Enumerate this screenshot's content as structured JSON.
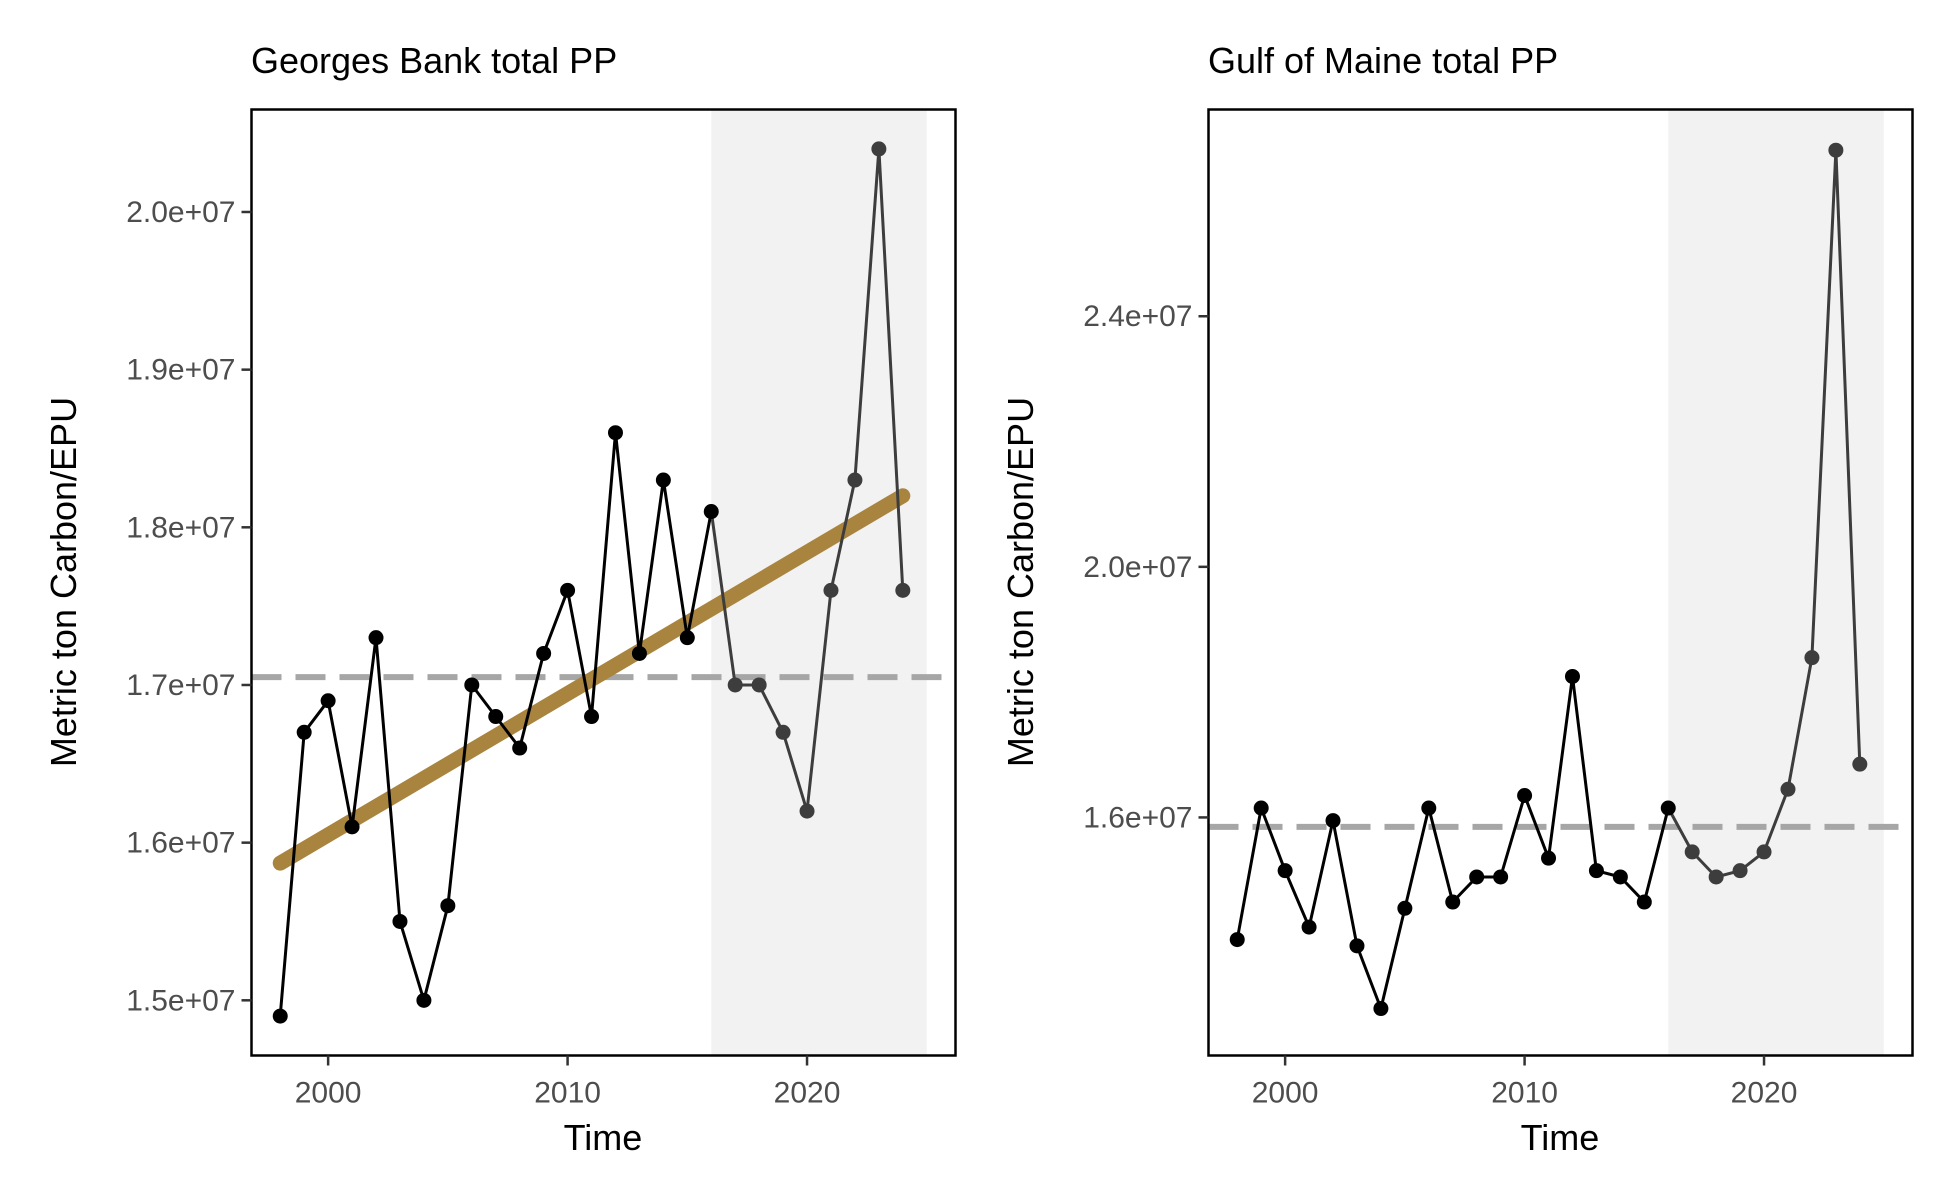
{
  "colors": {
    "recent_shade": "#f2f2f2",
    "baseline": "#a6a6a6",
    "trend": "#a9843f",
    "series_line": "#000000",
    "recent_line": "#3d3d3d"
  },
  "chart_data": [
    {
      "type": "line",
      "title": "Georges Bank total PP",
      "xlabel": "Time",
      "ylabel": "Metric ton Carbon/EPU",
      "xlim": [
        1996.8,
        2026.2
      ],
      "ylim": [
        14650000,
        20650000
      ],
      "x_ticks": [
        2000,
        2010,
        2020
      ],
      "x_tick_labels": [
        "2000",
        "2010",
        "2020"
      ],
      "y_ticks": [
        15000000,
        16000000,
        17000000,
        18000000,
        19000000,
        20000000
      ],
      "y_tick_labels": [
        "1.5e+07",
        "1.6e+07",
        "1.7e+07",
        "1.8e+07",
        "1.9e+07",
        "2.0e+07"
      ],
      "shaded_region": [
        2016,
        2025
      ],
      "baseline_mean": 17050000,
      "trend_line": {
        "x": [
          1998,
          2024
        ],
        "y": [
          15870000,
          18200000
        ]
      },
      "series": [
        {
          "x": [
            1998,
            1999,
            2000,
            2001,
            2002,
            2003,
            2004,
            2005,
            2006,
            2007,
            2008,
            2009,
            2010,
            2011,
            2012,
            2013,
            2014,
            2015,
            2016,
            2017,
            2018,
            2019,
            2020,
            2021,
            2022,
            2023,
            2024
          ],
          "values": [
            14900000,
            16700000,
            16900000,
            16100000,
            17300000,
            15500000,
            15000000,
            15600000,
            17000000,
            16800000,
            16600000,
            17200000,
            17600000,
            16800000,
            18600000,
            17200000,
            18300000,
            17300000,
            18100000,
            17000000,
            17000000,
            16700000,
            16200000,
            17600000,
            18300000,
            20400000,
            17600000
          ]
        }
      ]
    },
    {
      "type": "line",
      "title": "Gulf of Maine total PP",
      "xlabel": "Time",
      "ylabel": "Metric ton Carbon/EPU",
      "xlim": [
        1996.8,
        2026.2
      ],
      "ylim": [
        12200000,
        27300000
      ],
      "x_ticks": [
        2000,
        2010,
        2020
      ],
      "x_tick_labels": [
        "2000",
        "2010",
        "2020"
      ],
      "y_ticks": [
        16000000,
        20000000,
        24000000
      ],
      "y_tick_labels": [
        "1.6e+07",
        "2.0e+07",
        "2.4e+07"
      ],
      "shaded_region": [
        2016,
        2025
      ],
      "baseline_mean": 15850000,
      "series": [
        {
          "x": [
            1998,
            1999,
            2000,
            2001,
            2002,
            2003,
            2004,
            2005,
            2006,
            2007,
            2008,
            2009,
            2010,
            2011,
            2012,
            2013,
            2014,
            2015,
            2016,
            2017,
            2018,
            2019,
            2020,
            2021,
            2022,
            2023,
            2024
          ],
          "values": [
            14050000,
            16150000,
            15150000,
            14250000,
            15950000,
            13950000,
            12950000,
            14550000,
            16150000,
            14650000,
            15050000,
            15050000,
            16350000,
            15350000,
            18250000,
            15150000,
            15050000,
            14650000,
            16150000,
            15450000,
            15050000,
            15150000,
            15450000,
            16450000,
            18550000,
            26650000,
            16850000
          ]
        }
      ]
    }
  ]
}
